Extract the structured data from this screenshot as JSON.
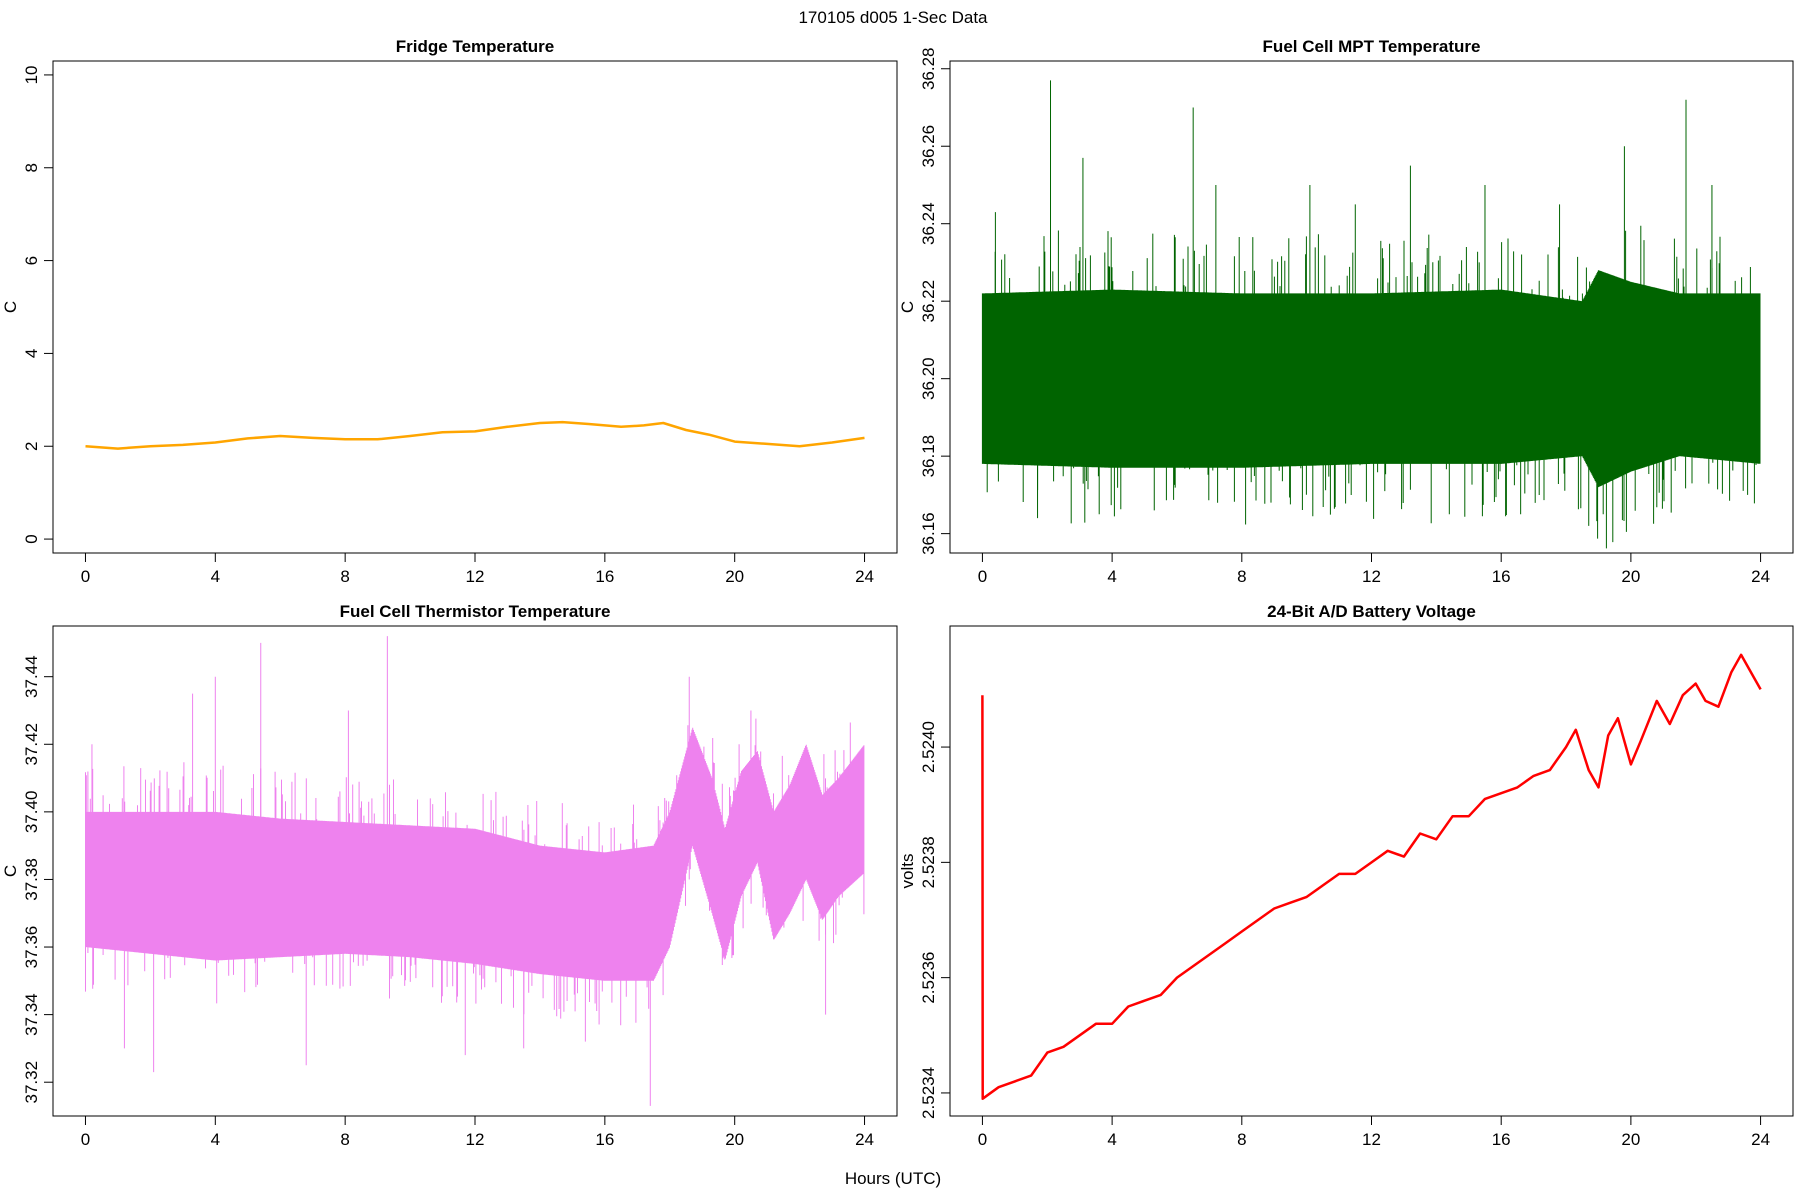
{
  "figure": {
    "suptitle": "170105   d005   1-Sec Data",
    "xlabel": "Hours (UTC)"
  },
  "chart_data": [
    {
      "type": "line",
      "title": "Fridge Temperature",
      "xlabel": "",
      "ylabel": "C",
      "color": "#FFA500",
      "xlim": [
        -1,
        25
      ],
      "ylim": [
        -0.3,
        10.3
      ],
      "xticks": [
        0,
        4,
        8,
        12,
        16,
        20,
        24
      ],
      "yticks": [
        0,
        2,
        4,
        6,
        8,
        10
      ],
      "ytick_labels": [
        "0",
        "2",
        "4",
        "6",
        "8",
        "10"
      ],
      "style": "smooth",
      "series": [
        {
          "x": [
            0,
            1,
            2,
            3,
            4,
            5,
            6,
            7,
            8,
            9,
            10,
            11,
            12,
            13,
            14,
            14.7,
            15.5,
            16.5,
            17.2,
            17.8,
            18.5,
            19.2,
            20,
            21,
            22,
            23,
            24
          ],
          "y": [
            2.0,
            1.95,
            2.0,
            2.03,
            2.08,
            2.17,
            2.22,
            2.18,
            2.15,
            2.15,
            2.22,
            2.3,
            2.32,
            2.42,
            2.5,
            2.52,
            2.48,
            2.42,
            2.45,
            2.5,
            2.35,
            2.25,
            2.1,
            2.05,
            2.0,
            2.08,
            2.18
          ]
        }
      ]
    },
    {
      "type": "line",
      "title": "Fuel Cell MPT Temperature",
      "xlabel": "",
      "ylabel": "C",
      "color": "#006400",
      "xlim": [
        -1,
        25
      ],
      "ylim": [
        36.155,
        36.282
      ],
      "xticks": [
        0,
        4,
        8,
        12,
        16,
        20,
        24
      ],
      "yticks": [
        36.16,
        36.18,
        36.2,
        36.22,
        36.24,
        36.26,
        36.28
      ],
      "ytick_labels": [
        "36.16",
        "36.18",
        "36.20",
        "36.22",
        "36.24",
        "36.26",
        "36.28"
      ],
      "style": "noise",
      "series": [
        {
          "x": [
            0,
            24
          ],
          "y": [
            36.2,
            36.2
          ],
          "band_x": [
            0,
            4,
            8,
            12,
            16,
            18.5,
            19,
            20,
            21.5,
            24
          ],
          "band_low": [
            36.178,
            36.177,
            36.177,
            36.178,
            36.178,
            36.18,
            36.172,
            36.176,
            36.18,
            36.178
          ],
          "band_high": [
            36.222,
            36.223,
            36.222,
            36.222,
            36.223,
            36.22,
            36.228,
            36.225,
            36.222,
            36.222
          ],
          "spikes_x": [
            2.1,
            6.5,
            7.2,
            3.1,
            10.1,
            15.5,
            19.8,
            21.7,
            22.5,
            13.2,
            0.4,
            11.5,
            17.8,
            8.9,
            14.4,
            18.7,
            1.7,
            5.3,
            16.6,
            23.6
          ],
          "spikes_y": [
            36.277,
            36.27,
            36.25,
            36.257,
            36.25,
            36.25,
            36.26,
            36.272,
            36.25,
            36.255,
            36.243,
            36.245,
            36.245,
            36.168,
            36.165,
            36.162,
            36.164,
            36.166,
            36.165,
            36.17
          ]
        }
      ]
    },
    {
      "type": "line",
      "title": "Fuel Cell Thermistor Temperature",
      "xlabel": "",
      "ylabel": "C",
      "color": "#EE82EE",
      "xlim": [
        -1,
        25
      ],
      "ylim": [
        37.31,
        37.455
      ],
      "xticks": [
        0,
        4,
        8,
        12,
        16,
        20,
        24
      ],
      "yticks": [
        37.32,
        37.34,
        37.36,
        37.38,
        37.4,
        37.42,
        37.44
      ],
      "ytick_labels": [
        "37.32",
        "37.34",
        "37.36",
        "37.38",
        "37.40",
        "37.42",
        "37.44"
      ],
      "style": "noise",
      "series": [
        {
          "x": [
            0,
            24
          ],
          "y": [
            37.38,
            37.38
          ],
          "band_x": [
            0,
            2,
            4,
            6,
            8,
            10,
            12,
            14,
            16,
            17.5,
            18,
            18.7,
            19.3,
            19.7,
            20.2,
            20.7,
            21.2,
            21.7,
            22.2,
            22.7,
            23.2,
            24
          ],
          "band_low": [
            37.36,
            37.358,
            37.356,
            37.357,
            37.358,
            37.357,
            37.355,
            37.352,
            37.35,
            37.35,
            37.36,
            37.39,
            37.37,
            37.356,
            37.375,
            37.385,
            37.362,
            37.37,
            37.38,
            37.368,
            37.375,
            37.382
          ],
          "band_high": [
            37.4,
            37.4,
            37.4,
            37.398,
            37.397,
            37.396,
            37.395,
            37.39,
            37.388,
            37.39,
            37.4,
            37.425,
            37.41,
            37.395,
            37.412,
            37.418,
            37.4,
            37.408,
            37.42,
            37.405,
            37.41,
            37.42
          ],
          "spikes_x": [
            9.3,
            5.4,
            4.0,
            0.2,
            2.1,
            6.8,
            17.4,
            11.7,
            13.5,
            15.4,
            3.3,
            8.1,
            1.2,
            20.5,
            22.8,
            18.6
          ],
          "spikes_y": [
            37.452,
            37.45,
            37.44,
            37.42,
            37.323,
            37.325,
            37.313,
            37.328,
            37.33,
            37.332,
            37.435,
            37.43,
            37.33,
            37.43,
            37.34,
            37.44
          ]
        }
      ]
    },
    {
      "type": "line",
      "title": "24-Bit A/D Battery Voltage",
      "xlabel": "",
      "ylabel": "volts",
      "color": "#FF0000",
      "xlim": [
        -1,
        25
      ],
      "ylim": [
        2.52336,
        2.52421
      ],
      "xticks": [
        0,
        4,
        8,
        12,
        16,
        20,
        24
      ],
      "yticks": [
        2.5234,
        2.5236,
        2.5238,
        2.524
      ],
      "ytick_labels": [
        "2.5234",
        "2.5236",
        "2.5238",
        "2.5240"
      ],
      "style": "smooth",
      "series": [
        {
          "x": [
            0,
            0,
            0.01,
            0.5,
            1.0,
            1.5,
            2.0,
            2.5,
            3.0,
            3.5,
            4.0,
            4.5,
            5.0,
            5.5,
            6.0,
            6.5,
            7.0,
            7.5,
            8.0,
            8.5,
            9.0,
            9.5,
            10.0,
            10.5,
            11.0,
            11.5,
            12.0,
            12.5,
            13.0,
            13.5,
            14.0,
            14.5,
            15.0,
            15.5,
            16.0,
            16.5,
            17.0,
            17.5,
            18.0,
            18.3,
            18.7,
            19.0,
            19.3,
            19.6,
            20.0,
            20.3,
            20.8,
            21.2,
            21.6,
            22.0,
            22.3,
            22.7,
            23.1,
            23.4,
            23.8,
            24.0
          ],
          "y": [
            2.52409,
            2.52409,
            2.52339,
            2.52341,
            2.52342,
            2.52343,
            2.52347,
            2.52348,
            2.5235,
            2.52352,
            2.52352,
            2.52355,
            2.52356,
            2.52357,
            2.5236,
            2.52362,
            2.52364,
            2.52366,
            2.52368,
            2.5237,
            2.52372,
            2.52373,
            2.52374,
            2.52376,
            2.52378,
            2.52378,
            2.5238,
            2.52382,
            2.52381,
            2.52385,
            2.52384,
            2.52388,
            2.52388,
            2.52391,
            2.52392,
            2.52393,
            2.52395,
            2.52396,
            2.524,
            2.52403,
            2.52396,
            2.52393,
            2.52402,
            2.52405,
            2.52397,
            2.52401,
            2.52408,
            2.52404,
            2.52409,
            2.52411,
            2.52408,
            2.52407,
            2.52413,
            2.52416,
            2.52412,
            2.5241
          ]
        }
      ]
    }
  ]
}
